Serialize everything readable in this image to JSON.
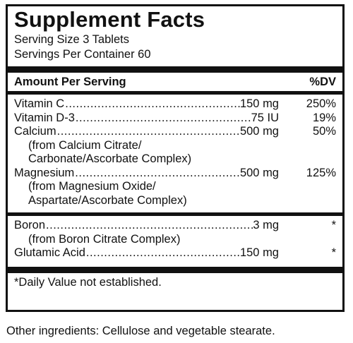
{
  "label": {
    "title": "Supplement Facts",
    "serving_size": "Serving Size 3 Tablets",
    "servings_per_container": "Servings Per Container 60",
    "header_left": "Amount Per Serving",
    "header_right": "%DV",
    "nutrients_group1": [
      {
        "name": "Vitamin C",
        "amount": "150 mg",
        "dv": "250%",
        "sub": []
      },
      {
        "name": "Vitamin D-3",
        "amount": "75 IU",
        "dv": "19%",
        "sub": []
      },
      {
        "name": "Calcium",
        "amount": "500 mg",
        "dv": "50%",
        "sub": [
          "(from Calcium Citrate/",
          "Carbonate/Ascorbate Complex)"
        ]
      },
      {
        "name": "Magnesium",
        "amount": "500 mg",
        "dv": "125%",
        "sub": [
          "(from Magnesium Oxide/",
          "Aspartate/Ascorbate Complex)"
        ]
      }
    ],
    "nutrients_group2": [
      {
        "name": "Boron",
        "amount": "3 mg",
        "dv": "*",
        "sub": [
          "(from Boron Citrate Complex)"
        ]
      },
      {
        "name": "Glutamic Acid",
        "amount": "150 mg",
        "dv": "*",
        "sub": []
      }
    ],
    "footnote": "*Daily Value not established."
  },
  "other_ingredients": "Other ingredients: Cellulose and vegetable stearate."
}
